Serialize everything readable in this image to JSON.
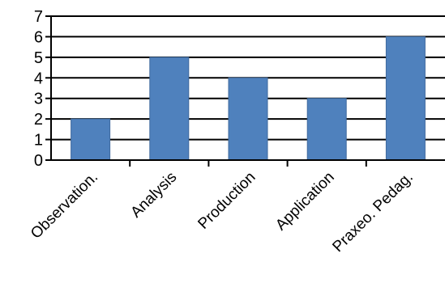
{
  "chart_data": {
    "type": "bar",
    "categories": [
      "Observation.",
      "Analysis",
      "Production",
      "Application",
      "Praxeo. Pedag."
    ],
    "values": [
      2,
      5,
      4,
      3,
      6
    ],
    "title": "",
    "xlabel": "",
    "ylabel": "",
    "ylim": [
      0,
      7
    ],
    "yticks": [
      "0",
      "1",
      "2",
      "3",
      "4",
      "5",
      "6",
      "7"
    ],
    "grid": true,
    "legend": "none",
    "colors": {
      "bar": "#4f81bd",
      "bar_edge": "#3f6a9e",
      "grid": "#000000",
      "axis": "#000000",
      "text": "#000000"
    }
  }
}
